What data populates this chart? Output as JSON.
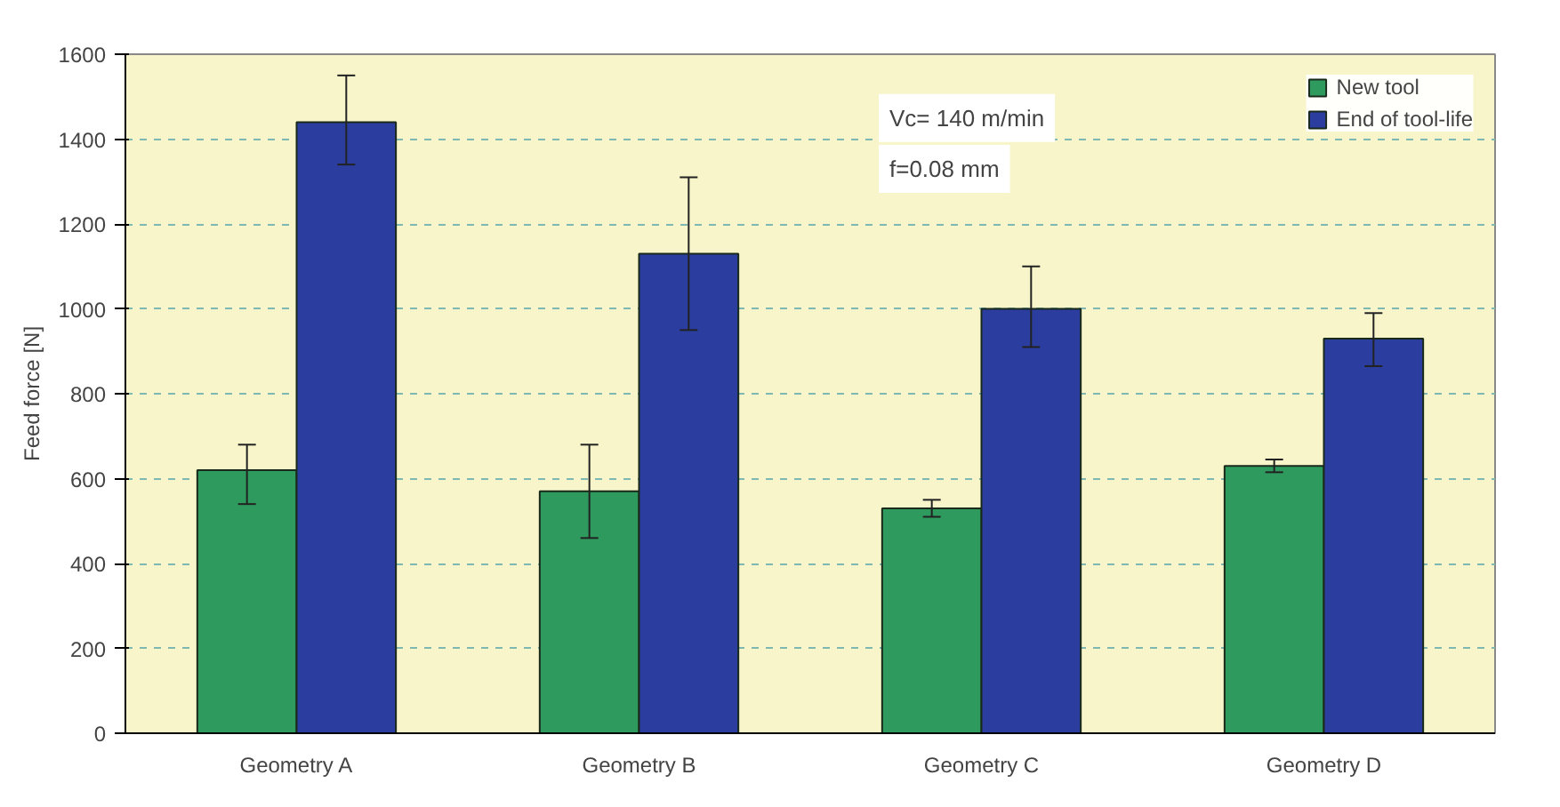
{
  "chart_data": {
    "type": "bar",
    "ylabel": "Feed force [N]",
    "categories": [
      "Geometry A",
      "Geometry B",
      "Geometry C",
      "Geometry D"
    ],
    "series": [
      {
        "name": "New tool",
        "color": "#2e9a5e",
        "values": [
          620,
          570,
          530,
          630
        ],
        "errors": [
          [
            540,
            680
          ],
          [
            460,
            680
          ],
          [
            510,
            550
          ],
          [
            615,
            645
          ]
        ]
      },
      {
        "name": "End of tool-life",
        "color": "#2b3ea0",
        "values": [
          1440,
          1130,
          1000,
          930
        ],
        "errors": [
          [
            1340,
            1550
          ],
          [
            950,
            1310
          ],
          [
            910,
            1100
          ],
          [
            865,
            990
          ]
        ]
      }
    ],
    "ylim": [
      0,
      1600
    ],
    "yticks": [
      0,
      200,
      400,
      600,
      800,
      1000,
      1200,
      1400,
      1600
    ],
    "grid": "y",
    "legend": "top right",
    "annotations": [
      "Vc= 140 m/min",
      "f=0.08 mm"
    ]
  }
}
